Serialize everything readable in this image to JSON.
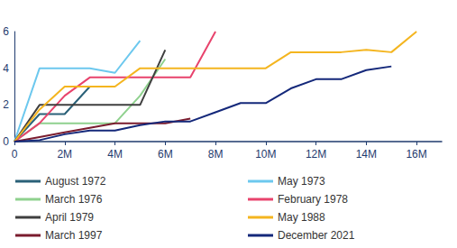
{
  "chart_data": {
    "type": "line",
    "x": [
      0,
      1,
      2,
      3,
      4,
      5,
      6,
      7,
      8,
      9,
      10,
      11,
      12,
      13,
      14,
      15,
      16
    ],
    "xlim": [
      0,
      17
    ],
    "xticks": [
      0,
      {
        "value": 2,
        "label": "2M"
      },
      {
        "value": 4,
        "label": "4M"
      },
      {
        "value": 6,
        "label": "6M"
      },
      {
        "value": 8,
        "label": "8M"
      },
      {
        "value": 10,
        "label": "10M"
      },
      {
        "value": 12,
        "label": "12M"
      },
      {
        "value": 14,
        "label": "14M"
      },
      {
        "value": 16,
        "label": "16M"
      }
    ],
    "ylim": [
      0,
      6
    ],
    "yticks": [
      0,
      2,
      4,
      6
    ],
    "grid": false,
    "legend": "bottom",
    "series": [
      {
        "name": "August 1972",
        "color": "#2a6178",
        "values": [
          0,
          1.5,
          1.5,
          3,
          null,
          null,
          null,
          null,
          null,
          null,
          null,
          null,
          null,
          null,
          null,
          null,
          null
        ]
      },
      {
        "name": "May 1973",
        "color": "#6cc8ee",
        "values": [
          0,
          4,
          4,
          4,
          3.75,
          5.5,
          null,
          null,
          null,
          null,
          null,
          null,
          null,
          null,
          null,
          null,
          null
        ]
      },
      {
        "name": "March 1976",
        "color": "#8fd18e",
        "values": [
          0,
          1,
          1,
          1,
          1,
          2.5,
          4.5,
          null,
          null,
          null,
          null,
          null,
          null,
          null,
          null,
          null,
          null
        ]
      },
      {
        "name": "February 1978",
        "color": "#e8436c",
        "values": [
          0,
          1,
          2.5,
          3.5,
          3.5,
          3.5,
          3.5,
          3.5,
          6,
          null,
          null,
          null,
          null,
          null,
          null,
          null,
          null
        ]
      },
      {
        "name": "April 1979",
        "color": "#3f3f3f",
        "values": [
          0,
          2,
          2,
          2,
          2,
          2,
          5,
          null,
          null,
          null,
          null,
          null,
          null,
          null,
          null,
          null,
          null
        ]
      },
      {
        "name": "May 1988",
        "color": "#f4b51f",
        "values": [
          0,
          1.75,
          3,
          3,
          3,
          4,
          4,
          4,
          4,
          4,
          4,
          4.875,
          4.875,
          4.875,
          5,
          4.875,
          6
        ]
      },
      {
        "name": "March 1997",
        "color": "#7a1c2e",
        "values": [
          0,
          0.25,
          0.5,
          0.75,
          1,
          1,
          1,
          1.25,
          null,
          null,
          null,
          null,
          null,
          null,
          null,
          null,
          null
        ]
      },
      {
        "name": "December 2021",
        "color": "#14287a",
        "values": [
          0,
          0.08,
          0.4,
          0.6,
          0.6,
          0.9,
          1.1,
          1.1,
          1.6,
          2.1,
          2.1,
          2.9,
          3.4,
          3.4,
          3.9,
          4.1,
          null
        ]
      }
    ]
  }
}
